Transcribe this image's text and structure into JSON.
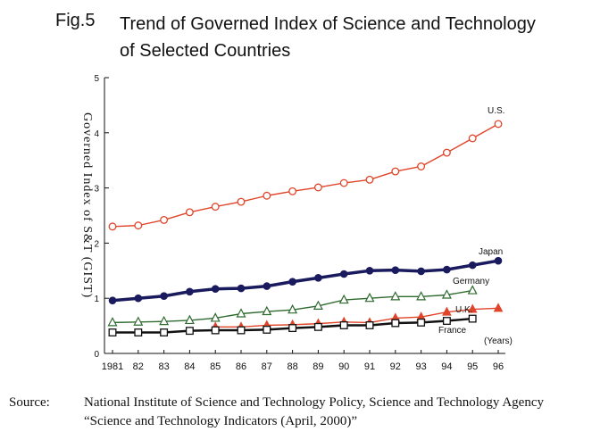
{
  "figure": {
    "label": "Fig.5",
    "title_line1": "Trend of Governed Index of Science and Technology",
    "title_line2": "of Selected Countries"
  },
  "chart_data": {
    "type": "line",
    "ylabel": "Governed Index of S&T (GIST)",
    "xlabel": "(Years)",
    "ylim": [
      0,
      5
    ],
    "y_ticks": [
      "0",
      "1",
      "2",
      "3",
      "4",
      "5"
    ],
    "categories": [
      "1981",
      "82",
      "83",
      "84",
      "85",
      "86",
      "87",
      "88",
      "89",
      "90",
      "91",
      "92",
      "93",
      "94",
      "95",
      "96"
    ],
    "grid": false,
    "series": [
      {
        "name": "U.S.",
        "color": "#e0452a",
        "marker": "circle-open",
        "line_width": 1.4,
        "values": [
          2.3,
          2.32,
          2.42,
          2.56,
          2.66,
          2.75,
          2.86,
          2.94,
          3.01,
          3.09,
          3.15,
          3.3,
          3.39,
          3.64,
          3.9,
          4.16
        ]
      },
      {
        "name": "Japan",
        "color": "#1a1a5e",
        "marker": "circle-filled",
        "line_width": 3.5,
        "values": [
          0.96,
          1.0,
          1.04,
          1.12,
          1.17,
          1.18,
          1.22,
          1.3,
          1.37,
          1.44,
          1.5,
          1.51,
          1.49,
          1.52,
          1.6,
          1.68
        ]
      },
      {
        "name": "Germany",
        "color": "#2f6b2f",
        "marker": "triangle-open",
        "line_width": 1.4,
        "values": [
          0.56,
          0.57,
          0.58,
          0.6,
          0.64,
          0.72,
          0.76,
          0.79,
          0.86,
          0.97,
          1.0,
          1.03,
          1.03,
          1.06,
          1.14,
          null
        ]
      },
      {
        "name": "U.K.",
        "color": "#e0452a",
        "marker": "triangle-filled",
        "line_width": 1.4,
        "values": [
          null,
          null,
          null,
          null,
          0.48,
          0.48,
          0.51,
          0.52,
          0.54,
          0.57,
          0.56,
          0.64,
          0.66,
          0.75,
          0.8,
          0.82
        ]
      },
      {
        "name": "France",
        "color": "#111111",
        "marker": "square-open",
        "line_width": 2.5,
        "values": [
          0.38,
          0.38,
          0.38,
          0.41,
          0.42,
          0.42,
          0.43,
          0.46,
          0.48,
          0.51,
          0.51,
          0.55,
          0.56,
          0.59,
          0.63,
          null
        ]
      }
    ]
  },
  "source": {
    "label": "Source:",
    "line1": "National Institute of Science and Technology Policy, Science and Technology Agency",
    "line2": "“Science and Technology Indicators (April, 2000)”"
  }
}
